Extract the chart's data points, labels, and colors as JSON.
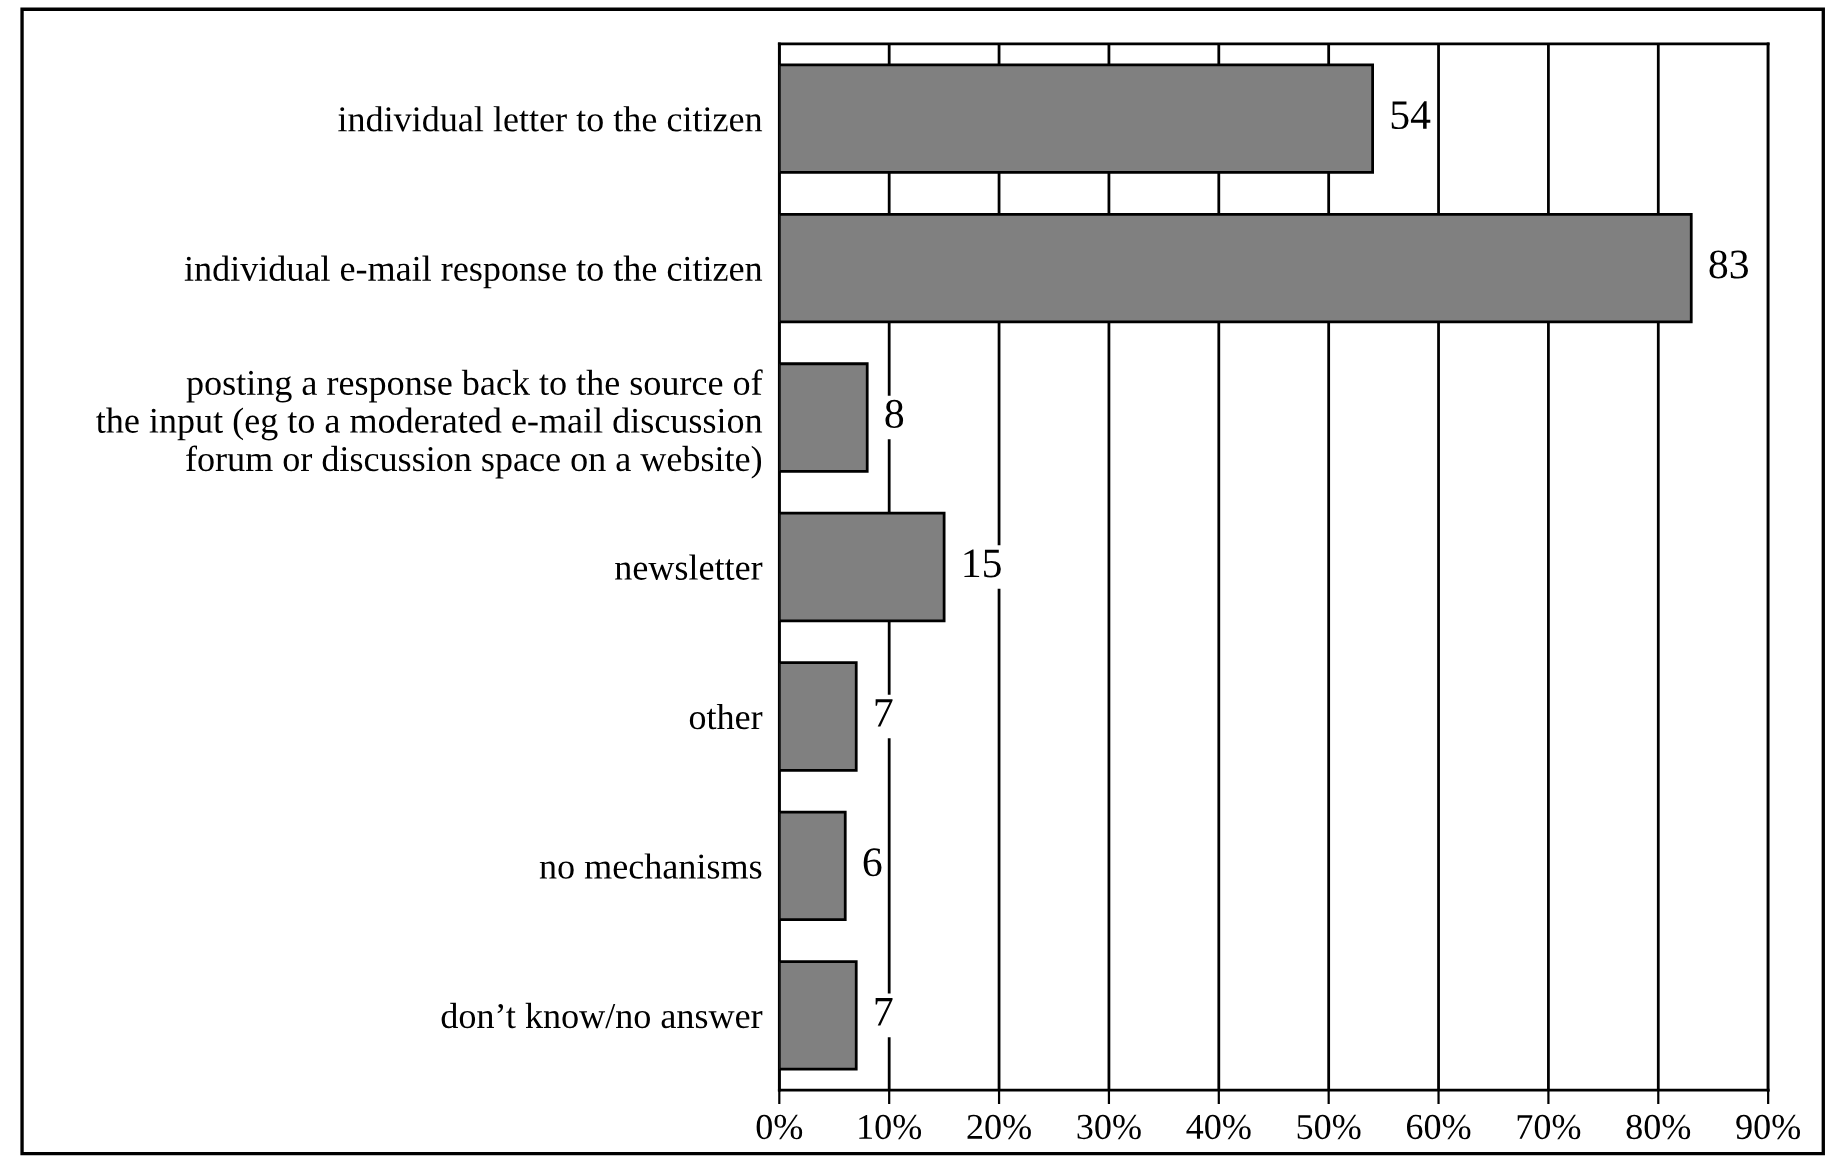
{
  "chart_data": {
    "type": "bar",
    "orientation": "horizontal",
    "categories": [
      "individual letter to the citizen",
      "individual e-mail response to the citizen",
      "posting a response back to the source of\nthe input (eg to a moderated e-mail discussion\nforum or discussion space on a website)",
      "newsletter",
      "other",
      "no mechanisms",
      "don’t know/no answer"
    ],
    "values": [
      54,
      83,
      8,
      15,
      7,
      6,
      7
    ],
    "color": "#808080",
    "xlim": [
      0,
      90
    ],
    "xticks": [
      {
        "value": 0,
        "label": "0%"
      },
      {
        "value": 10,
        "label": "10%"
      },
      {
        "value": 20,
        "label": "20%"
      },
      {
        "value": 30,
        "label": "30%"
      },
      {
        "value": 40,
        "label": "40%"
      },
      {
        "value": 50,
        "label": "50%"
      },
      {
        "value": 60,
        "label": "60%"
      },
      {
        "value": 70,
        "label": "70%"
      },
      {
        "value": 80,
        "label": "80%"
      },
      {
        "value": 90,
        "label": "90%"
      }
    ],
    "grid": "x",
    "data_labels": true
  }
}
